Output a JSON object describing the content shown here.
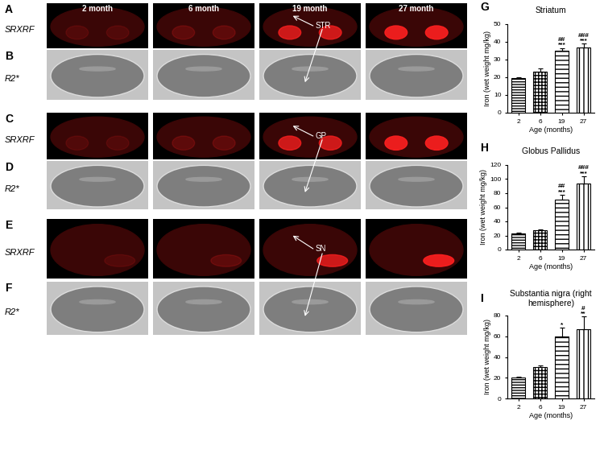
{
  "images": {
    "columns": [
      "2 month",
      "6 month",
      "19 month",
      "27 month"
    ],
    "rows": [
      {
        "letter": "A",
        "label": "SRXRF"
      },
      {
        "letter": "B",
        "label": "R2*"
      },
      {
        "letter": "C",
        "label": "SRXRF"
      },
      {
        "letter": "D",
        "label": "R2*"
      },
      {
        "letter": "E",
        "label": "SRXRF"
      },
      {
        "letter": "F",
        "label": "R2*"
      }
    ],
    "arrows": [
      {
        "label": "STR",
        "rows": [
          "A",
          "B"
        ]
      },
      {
        "label": "GP",
        "rows": [
          "C",
          "D"
        ]
      },
      {
        "label": "SN",
        "rows": [
          "E",
          "F"
        ]
      }
    ]
  },
  "chart_data": [
    {
      "type": "bar",
      "panel_label": "G",
      "title": "Striatum",
      "x_label": "Age (months)",
      "y_label": "Iron (wet weight mg/kg)",
      "categories": [
        "2",
        "6",
        "19",
        "27"
      ],
      "values": [
        19.5,
        23,
        35,
        37
      ],
      "error": [
        0.5,
        2,
        1.5,
        2
      ],
      "color": "#ffffff",
      "annotations": [
        null,
        null,
        [
          "##",
          "***"
        ],
        [
          "###",
          "***"
        ]
      ],
      "ylim": [
        0,
        50
      ],
      "yticks": [
        0,
        10,
        20,
        30,
        40,
        50
      ]
    },
    {
      "type": "bar",
      "panel_label": "H",
      "title": "Globus Pallidus",
      "x_label": "Age (months)",
      "y_label": "Iron (wet weight mg/kg)",
      "categories": [
        "2",
        "6",
        "19",
        "27"
      ],
      "values": [
        23,
        27.5,
        71,
        94
      ],
      "error": [
        1,
        1,
        7,
        10
      ],
      "color": "#ffffff",
      "annotations": [
        null,
        null,
        [
          "##",
          "***"
        ],
        [
          "###",
          "***"
        ]
      ],
      "ylim": [
        0,
        120
      ],
      "yticks": [
        0,
        20,
        40,
        60,
        80,
        100,
        120
      ]
    },
    {
      "type": "bar",
      "panel_label": "I",
      "title": "Substantia nigra (right hemisphere)",
      "x_label": "Age (months)",
      "y_label": "Iron (wet weight mg/kg)",
      "categories": [
        "2",
        "6",
        "19",
        "27"
      ],
      "values": [
        20,
        30,
        60,
        67
      ],
      "error": [
        1,
        2,
        8,
        12
      ],
      "color": "#ffffff",
      "annotations": [
        null,
        null,
        [
          "*"
        ],
        [
          "#",
          "**"
        ]
      ],
      "ylim": [
        0,
        80
      ],
      "yticks": [
        0,
        20,
        40,
        60,
        80
      ]
    }
  ]
}
